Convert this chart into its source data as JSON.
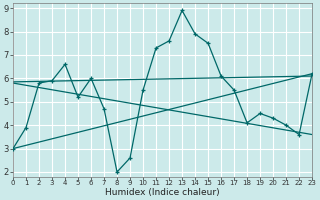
{
  "xlabel": "Humidex (Indice chaleur)",
  "bg_color": "#cceaea",
  "grid_color": "#ffffff",
  "line_color": "#006868",
  "xmin": 0,
  "xmax": 23,
  "ymin": 1.8,
  "ymax": 9.2,
  "line1_x": [
    0,
    1,
    2,
    3,
    4,
    5,
    6,
    7,
    8,
    9,
    10,
    11,
    12,
    13,
    14,
    15,
    16,
    17,
    18,
    19,
    20,
    21,
    22,
    23
  ],
  "line1_y": [
    3.0,
    3.9,
    5.8,
    5.9,
    6.6,
    5.2,
    6.0,
    4.7,
    2.0,
    2.6,
    5.5,
    7.3,
    7.6,
    8.9,
    7.9,
    7.5,
    6.1,
    5.5,
    4.1,
    4.5,
    4.3,
    4.0,
    3.6,
    6.2
  ],
  "line2_x": [
    0,
    23
  ],
  "line2_y": [
    3.0,
    6.2
  ],
  "line3_x": [
    0,
    23
  ],
  "line3_y": [
    5.85,
    6.1
  ],
  "line4_x": [
    0,
    23
  ],
  "line4_y": [
    5.8,
    3.6
  ],
  "yticks": [
    2,
    3,
    4,
    5,
    6,
    7,
    8,
    9
  ]
}
